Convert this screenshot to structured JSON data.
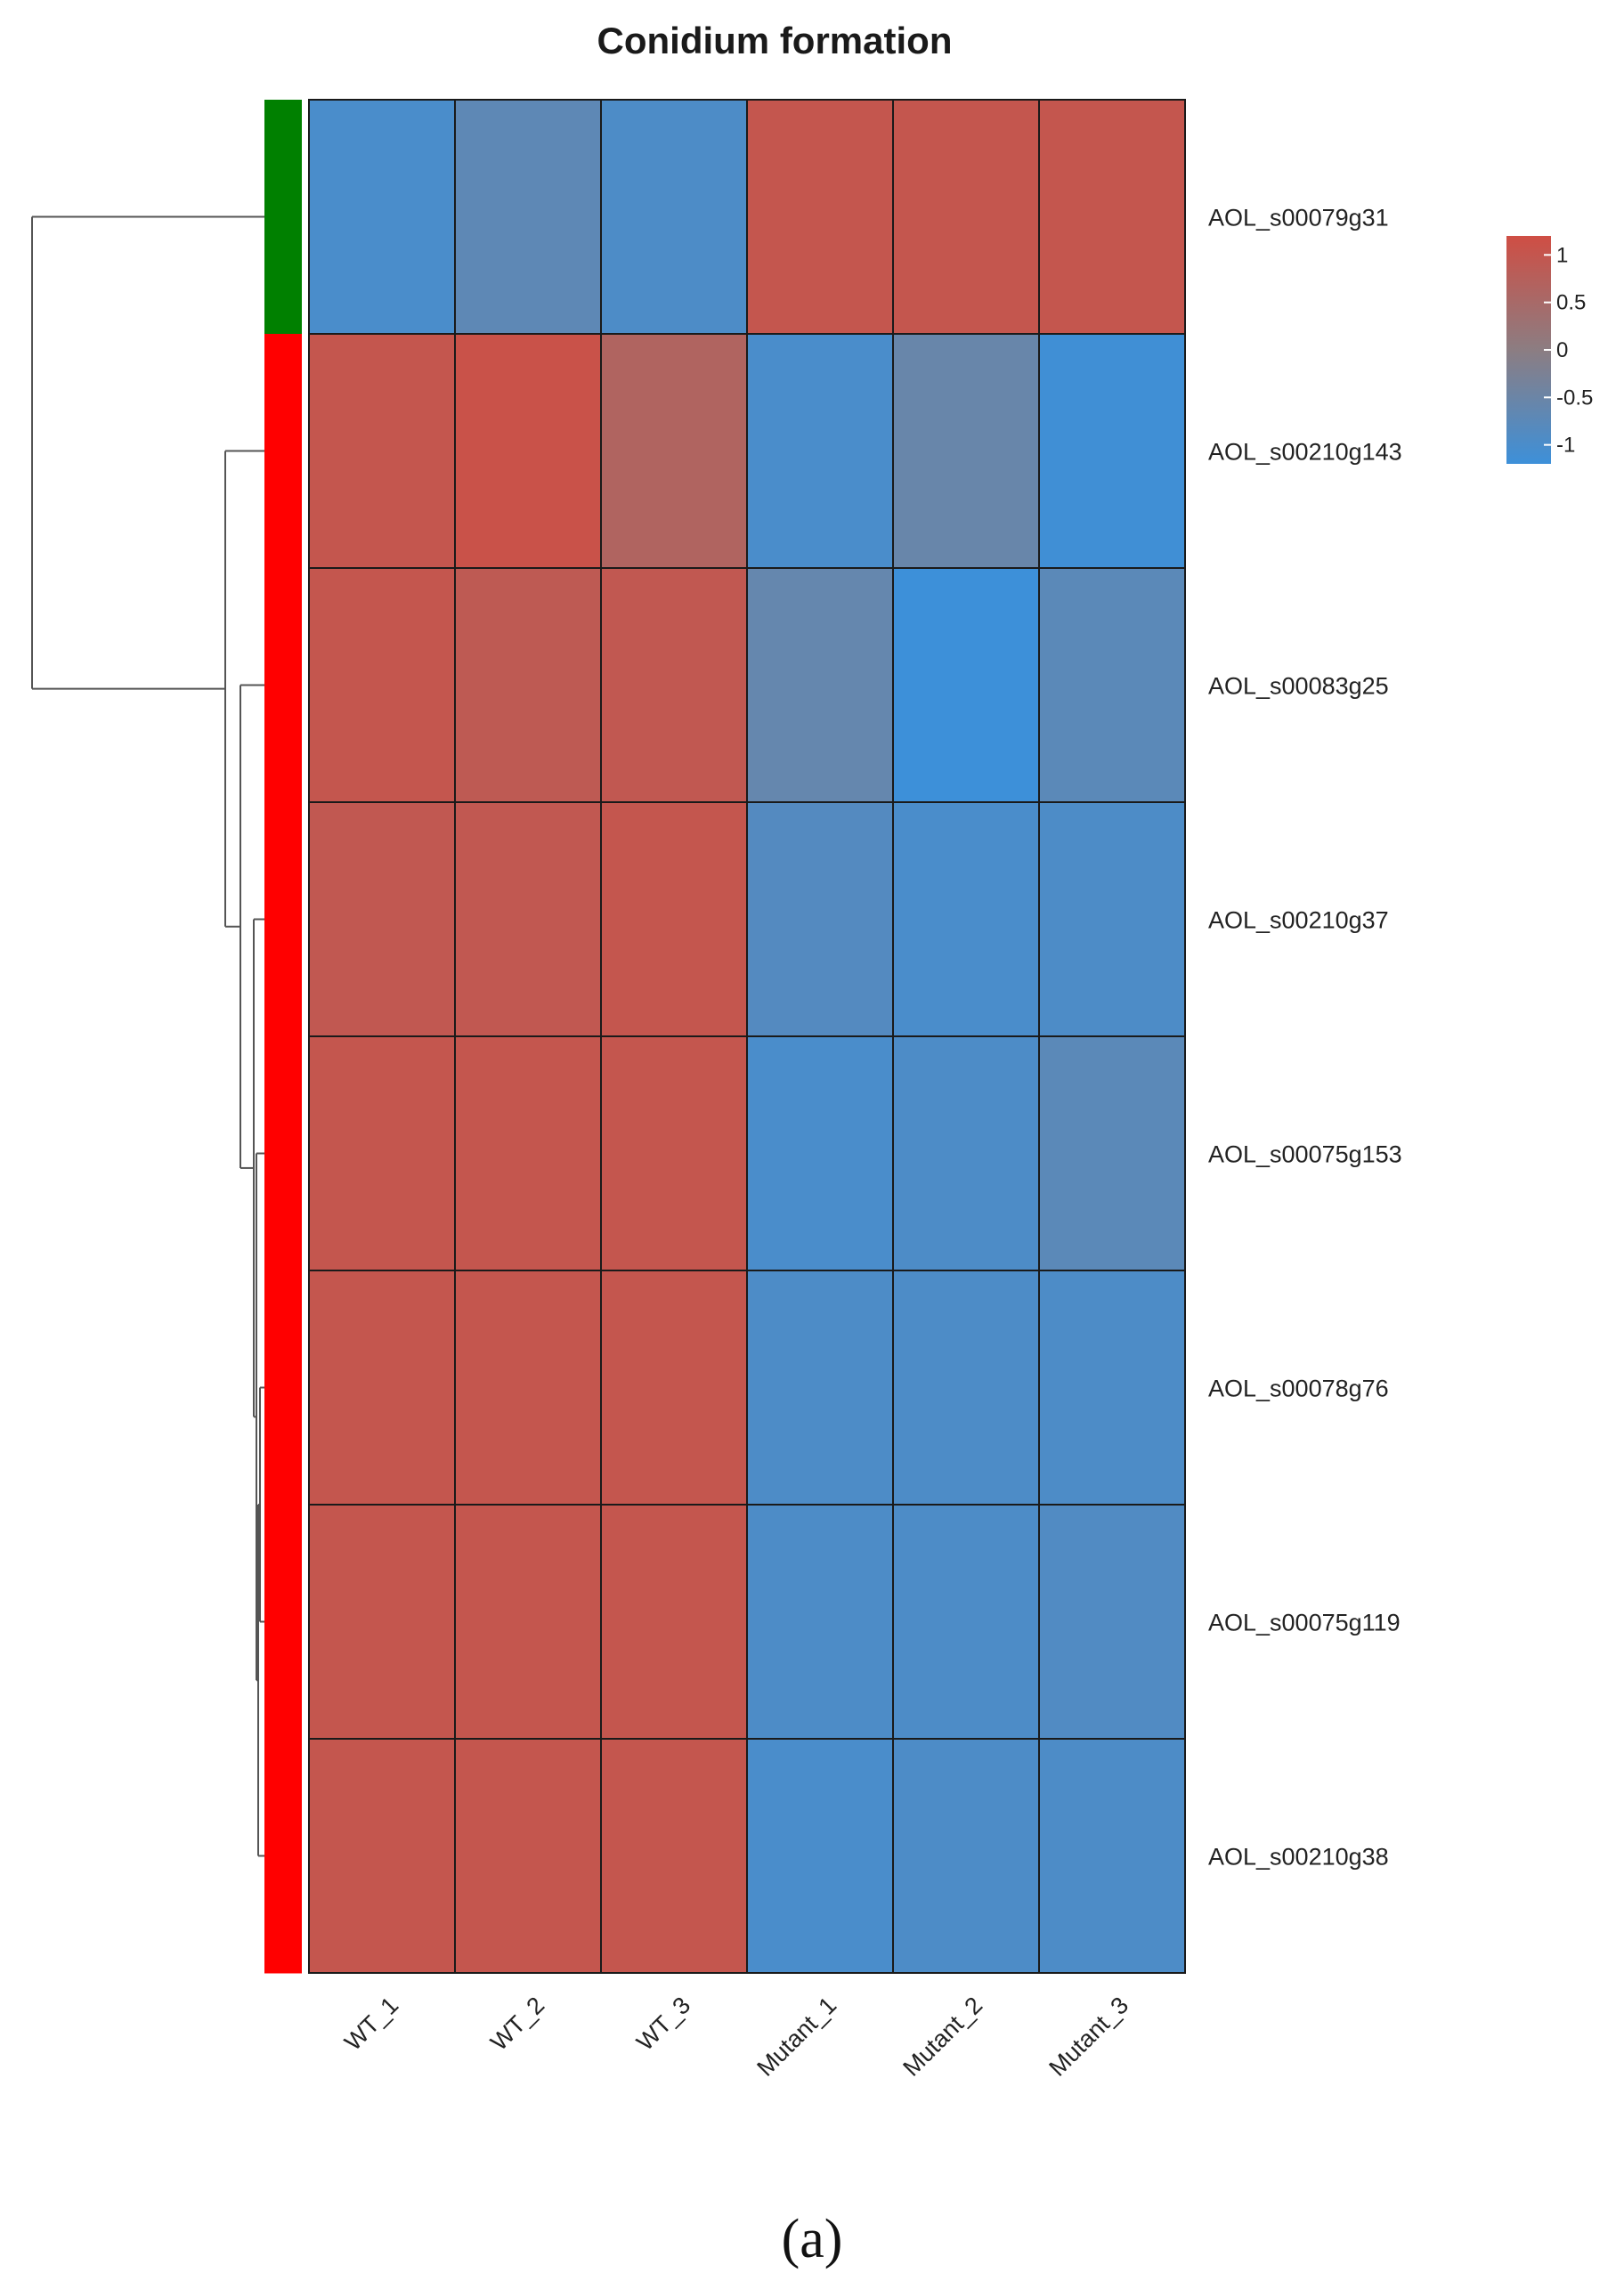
{
  "chart_data": {
    "type": "heatmap",
    "title": "Conidium formation",
    "columns": [
      "WT_1",
      "WT_2",
      "WT_3",
      "Mutant_1",
      "Mutant_2",
      "Mutant_3"
    ],
    "rows": [
      "AOL_s00079g31",
      "AOL_s00210g143",
      "AOL_s00083g25",
      "AOL_s00210g37",
      "AOL_s00075g153",
      "AOL_s00078g76",
      "AOL_s00075g119",
      "AOL_s00210g38"
    ],
    "values": [
      [
        -1.0,
        -0.7,
        -0.95,
        1.0,
        1.0,
        1.0
      ],
      [
        1.0,
        1.1,
        0.65,
        -1.0,
        -0.55,
        -1.15
      ],
      [
        1.0,
        0.9,
        0.95,
        -0.6,
        -1.25,
        -0.75
      ],
      [
        0.95,
        0.95,
        1.0,
        -0.85,
        -1.0,
        -0.95
      ],
      [
        1.0,
        1.0,
        1.0,
        -1.0,
        -0.95,
        -0.75
      ],
      [
        1.0,
        1.0,
        1.0,
        -0.95,
        -0.95,
        -0.95
      ],
      [
        1.0,
        1.0,
        1.0,
        -0.95,
        -0.95,
        -0.9
      ],
      [
        1.0,
        1.0,
        1.0,
        -1.0,
        -0.95,
        -0.95
      ]
    ],
    "row_clusters": [
      "cluster_1",
      "cluster_2",
      "cluster_2",
      "cluster_2",
      "cluster_2",
      "cluster_2",
      "cluster_2",
      "cluster_2"
    ],
    "cluster_colors": {
      "cluster_1": "#008000",
      "cluster_2": "#ff0000"
    },
    "color_scale": {
      "low": "#3d90d9",
      "mid": "#8c7d82",
      "high": "#cf4e44",
      "range": [
        -1.2,
        1.2
      ]
    },
    "legend": {
      "ticks": [
        "1",
        "0.5",
        "0",
        "-0.5",
        "-1"
      ],
      "tick_values": [
        1,
        0.5,
        0,
        -0.5,
        -1
      ],
      "placement": "top-right"
    },
    "dendrogram": "rows",
    "caption": "(a)"
  }
}
